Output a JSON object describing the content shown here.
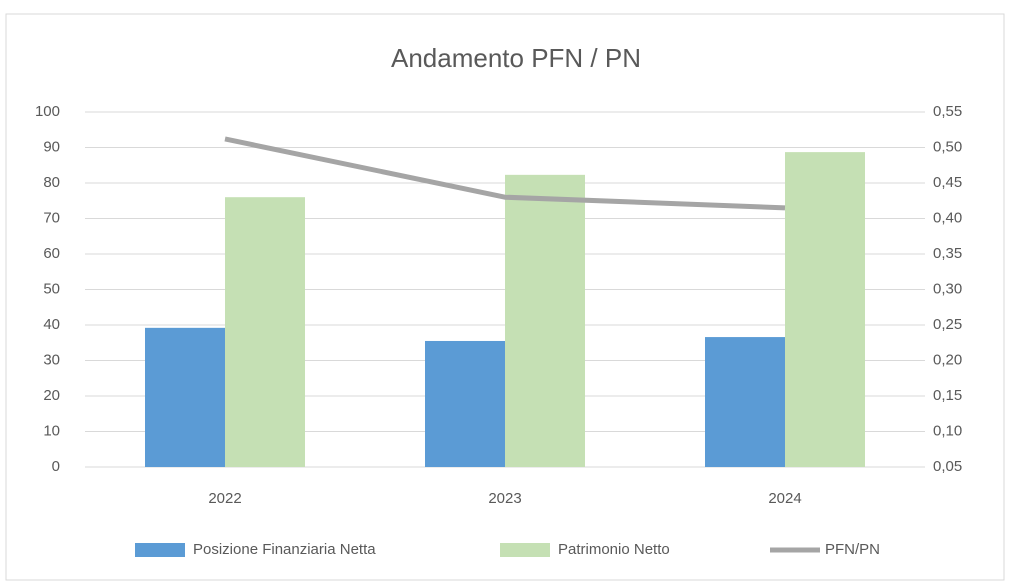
{
  "chart_data": {
    "type": "bar-line",
    "title": "Andamento PFN / PN",
    "categories": [
      "2022",
      "2023",
      "2024"
    ],
    "series": [
      {
        "name": "Posizione Finanziaria Netta",
        "type": "bar",
        "color": "#5b9bd5",
        "values": [
          39.2,
          35.5,
          36.6
        ]
      },
      {
        "name": "Patrimonio Netto",
        "type": "bar",
        "color": "#c5e0b4",
        "values": [
          76,
          82.3,
          88.7
        ]
      },
      {
        "name": "PFN/PN",
        "type": "line",
        "axis": "y2",
        "color": "#a5a5a5",
        "values": [
          0.512,
          0.43,
          0.415
        ]
      }
    ],
    "ylim": [
      0,
      100
    ],
    "yticks": [
      0,
      10,
      20,
      30,
      40,
      50,
      60,
      70,
      80,
      90,
      100
    ],
    "y2lim": [
      0.05,
      0.55
    ],
    "y2ticks": [
      {
        "value": 0.05,
        "label": "0,05"
      },
      {
        "value": 0.1,
        "label": "0,10"
      },
      {
        "value": 0.15,
        "label": "0,15"
      },
      {
        "value": 0.2,
        "label": "0,20"
      },
      {
        "value": 0.25,
        "label": "0,25"
      },
      {
        "value": 0.3,
        "label": "0,30"
      },
      {
        "value": 0.35,
        "label": "0,35"
      },
      {
        "value": 0.4,
        "label": "0,40"
      },
      {
        "value": 0.45,
        "label": "0,45"
      },
      {
        "value": 0.5,
        "label": "0,50"
      },
      {
        "value": 0.55,
        "label": "0,55"
      }
    ],
    "grid": true,
    "legend": "bottom"
  }
}
